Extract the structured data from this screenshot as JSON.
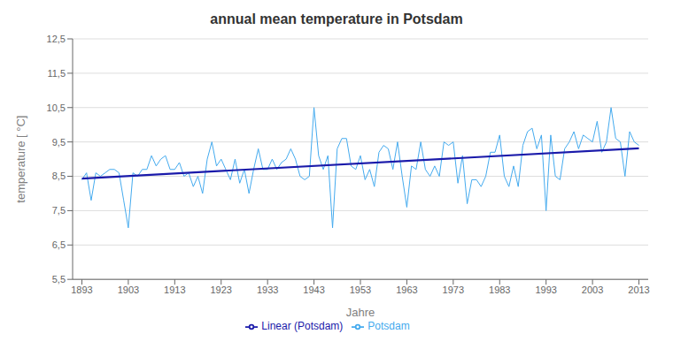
{
  "chart_data": {
    "type": "line",
    "title": "annual mean temperature in Potsdam",
    "x_label": "Jahre",
    "y_label": "temperature [ °C]",
    "x": [
      1893,
      1894,
      1895,
      1896,
      1897,
      1898,
      1899,
      1900,
      1901,
      1902,
      1903,
      1904,
      1905,
      1906,
      1907,
      1908,
      1909,
      1910,
      1911,
      1912,
      1913,
      1914,
      1915,
      1916,
      1917,
      1918,
      1919,
      1920,
      1921,
      1922,
      1923,
      1924,
      1925,
      1926,
      1927,
      1928,
      1929,
      1930,
      1931,
      1932,
      1933,
      1934,
      1935,
      1936,
      1937,
      1938,
      1939,
      1940,
      1941,
      1942,
      1943,
      1944,
      1945,
      1946,
      1947,
      1948,
      1949,
      1950,
      1951,
      1952,
      1953,
      1954,
      1955,
      1956,
      1957,
      1958,
      1959,
      1960,
      1961,
      1962,
      1963,
      1964,
      1965,
      1966,
      1967,
      1968,
      1969,
      1970,
      1971,
      1972,
      1973,
      1974,
      1975,
      1976,
      1977,
      1978,
      1979,
      1980,
      1981,
      1982,
      1983,
      1984,
      1985,
      1986,
      1987,
      1988,
      1989,
      1990,
      1991,
      1992,
      1993,
      1994,
      1995,
      1996,
      1997,
      1998,
      1999,
      2000,
      2001,
      2002,
      2003,
      2004,
      2005,
      2006,
      2007,
      2008,
      2009,
      2010,
      2011,
      2012,
      2013
    ],
    "series": [
      {
        "name": "Potsdam",
        "color": "#44aaee",
        "values": [
          8.4,
          8.6,
          7.8,
          8.6,
          8.5,
          8.6,
          8.7,
          8.7,
          8.6,
          7.8,
          7.0,
          8.6,
          8.5,
          8.7,
          8.7,
          9.1,
          8.8,
          9.0,
          9.1,
          8.7,
          8.7,
          8.9,
          8.5,
          8.6,
          8.2,
          8.5,
          8.0,
          9.0,
          9.5,
          8.8,
          9.0,
          8.7,
          8.4,
          9.0,
          8.3,
          8.7,
          8.0,
          8.7,
          9.3,
          8.7,
          8.7,
          9.0,
          8.7,
          8.9,
          9.0,
          9.3,
          9.0,
          8.5,
          8.4,
          8.5,
          10.5,
          9.1,
          8.7,
          9.1,
          7.0,
          9.3,
          9.6,
          9.6,
          8.8,
          8.7,
          9.1,
          8.4,
          8.7,
          8.2,
          9.2,
          9.4,
          9.3,
          8.7,
          9.5,
          8.5,
          7.6,
          8.8,
          8.7,
          9.5,
          8.7,
          8.5,
          8.8,
          8.5,
          9.5,
          9.4,
          9.5,
          8.3,
          9.1,
          7.7,
          8.4,
          8.4,
          8.2,
          8.5,
          9.2,
          9.2,
          9.7,
          8.5,
          8.2,
          8.8,
          8.2,
          9.4,
          9.8,
          9.9,
          9.3,
          9.7,
          7.5,
          9.7,
          8.5,
          8.4,
          9.3,
          9.5,
          9.8,
          9.3,
          9.7,
          9.6,
          9.5,
          10.1,
          9.2,
          9.5,
          10.5,
          9.6,
          9.5,
          8.5,
          9.8,
          9.5,
          9.4
        ]
      },
      {
        "name": "Linear (Potsdam)",
        "color": "#1a1aaa",
        "x": [
          1893,
          2013
        ],
        "values": [
          8.43542,
          9.31335
        ]
      }
    ],
    "xlim": [
      1891,
      2015
    ],
    "xticks": [
      1893,
      1903,
      1913,
      1923,
      1933,
      1943,
      1953,
      1963,
      1973,
      1983,
      1993,
      2003,
      2013
    ],
    "ylim": [
      5.5,
      12.5
    ],
    "yticks": [
      {
        "value": 5.5,
        "label": "5,5"
      },
      {
        "value": 6.5,
        "label": "6,5"
      },
      {
        "value": 7.5,
        "label": "7,5"
      },
      {
        "value": 8.5,
        "label": "8,5"
      },
      {
        "value": 9.5,
        "label": "9,5"
      },
      {
        "value": 10.5,
        "label": "10,5"
      },
      {
        "value": 11.5,
        "label": "11,5"
      },
      {
        "value": 12.5,
        "label": "12,5"
      }
    ],
    "grid": "y",
    "legend": "bottom"
  }
}
